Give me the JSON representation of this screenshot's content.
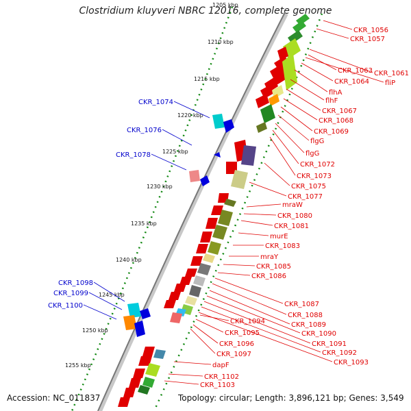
{
  "title": "Clostridium kluyveri NBRC 12016, complete genome",
  "footer": {
    "accession": "Accession: NC_011837",
    "topology": "Topology: circular; Length: 3,896,121 bp; Genes: 3,549"
  },
  "colors": {
    "forward_label": "#e00000",
    "reverse_label": "#0000cc",
    "backbone": "#888888",
    "ticks": "#118811"
  },
  "kbp_ticks": [
    "1205 kbp",
    "1210 kbp",
    "1215 kbp",
    "1220 kbp",
    "1225 kbp",
    "1230 kbp",
    "1235 kbp",
    "1240 kbp",
    "1245 kbp",
    "1250 kbp",
    "1255 kbp"
  ],
  "right_labels": [
    "CKR_1056",
    "CKR_1057",
    "CKR_1061",
    "CKR_1063",
    "fliP",
    "CKR_1064",
    "flhA",
    "flhF",
    "CKR_1067",
    "CKR_1068",
    "CKR_1069",
    "flgG",
    "flgG",
    "CKR_1072",
    "CKR_1073",
    "CKR_1075",
    "CKR_1077",
    "mraW",
    "CKR_1080",
    "CKR_1081",
    "murE",
    "CKR_1083",
    "mraY",
    "CKR_1085",
    "CKR_1086",
    "CKR_1087",
    "CKR_1088",
    "CKR_1089",
    "CKR_1090",
    "CKR_1091",
    "CKR_1092",
    "CKR_1093",
    "CKR_1094",
    "CKR_1095",
    "CKR_1096",
    "CKR_1097",
    "dapF",
    "CKR_1102",
    "CKR_1103"
  ],
  "left_labels": [
    "CKR_1074",
    "CKR_1076",
    "CKR_1078",
    "CKR_1098",
    "CKR_1099",
    "CKR_1100"
  ]
}
